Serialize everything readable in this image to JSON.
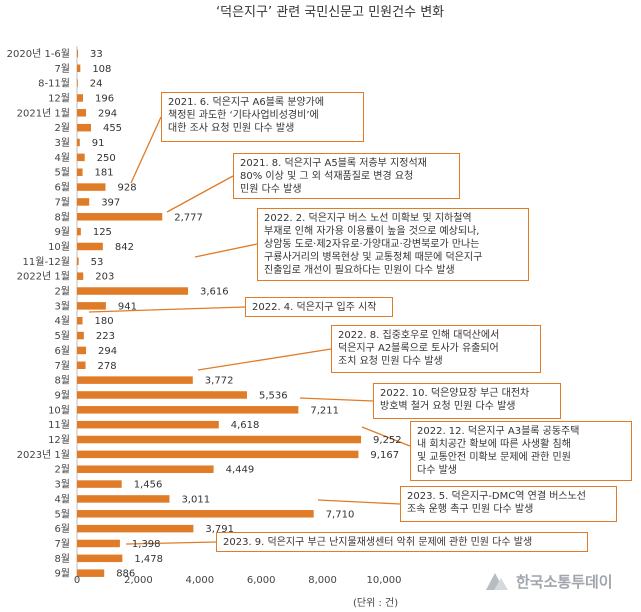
{
  "chart_data": {
    "type": "bar",
    "orientation": "horizontal",
    "title": "‘덕은지구’ 관련 국민신문고 민원건수 변화",
    "unit_label": "(단위 : 건)",
    "categories": [
      "2020년 1-6월",
      "7월",
      "8-11월",
      "12월",
      "2021년 1월",
      "2월",
      "3월",
      "4월",
      "5월",
      "6월",
      "7월",
      "8월",
      "9월",
      "10월",
      "11월-12월",
      "2022년 1월",
      "2월",
      "3월",
      "4월",
      "5월",
      "6월",
      "7월",
      "8월",
      "9월",
      "10월",
      "11월",
      "12월",
      "2023년 1월",
      "2월",
      "3월",
      "4월",
      "5월",
      "6월",
      "7월",
      "8월",
      "9월"
    ],
    "values": [
      33,
      108,
      24,
      196,
      294,
      455,
      91,
      250,
      181,
      928,
      397,
      2777,
      125,
      842,
      53,
      203,
      3616,
      941,
      180,
      223,
      294,
      278,
      3772,
      5536,
      7211,
      4618,
      9252,
      9167,
      4449,
      1456,
      3011,
      7710,
      3791,
      1398,
      1478,
      886
    ],
    "value_labels": [
      "33",
      "108",
      "24",
      "196",
      "294",
      "455",
      "91",
      "250",
      "181",
      "928",
      "397",
      "2,777",
      "125",
      "842",
      "53",
      "203",
      "3,616",
      "941",
      "180",
      "223",
      "294",
      "278",
      "3,772",
      "5,536",
      "7,211",
      "4,618",
      "9,252",
      "9,167",
      "4,449",
      "1,456",
      "3,011",
      "7,710",
      "3,791",
      "1,398",
      "1,478",
      "886"
    ],
    "xlim": [
      0,
      10000
    ],
    "xticks": [
      "0",
      "2,000",
      "4,000",
      "6,000",
      "8,000",
      "10,000"
    ],
    "bar_color": "#e07b27",
    "grid": false,
    "annotations": [
      {
        "target": "6월 (2021)",
        "text": "2021. 6. 덕은지구 A6블록 분양가에\n책정된 과도한 ‘기타사업비성경비’에\n대한 조사 요청 민원 다수 발생"
      },
      {
        "target": "8월 (2021)",
        "text": "2021. 8. 덕은지구 A5블록 저층부 지정석재\n80% 이상 및 그 외 석재품질로 변경 요청\n민원 다수 발생"
      },
      {
        "target": "2월 (2022)",
        "text": "2022. 2. 덕은지구 버스 노선 미확보 및 지하철역\n부재로 인해 자가용 이용률이 높을 것으로 예상되나,\n상암동 도로·제2자유로·가양대교·강변북로가 만나는\n구룡사거리의 병목현상 및 교통정체 때문에 덕은지구\n진출입로 개선이 필요하다는 민원이 다수 발생"
      },
      {
        "target": "4월 (2022)",
        "text": "2022. 4. 덕은지구 입주 시작"
      },
      {
        "target": "8월 (2022)",
        "text": "2022. 8. 집중호우로 인해 대덕산에서\n덕은지구 A2블록으로 토사가 유출되어\n조치 요청 민원 다수 발생"
      },
      {
        "target": "10월 (2022)",
        "text": "2022. 10. 덕은양묘장 부근 대전차\n방호벽 철거 요청 민원 다수 발생"
      },
      {
        "target": "12월 (2022)",
        "text": "2022. 12. 덕은지구 A3블록 공동주택\n내 회치공간 확보에 따른 사생활 침해\n및 교통안전 미확보 문제에 관한 민원\n다수 발생"
      },
      {
        "target": "5월 (2023)",
        "text": "2023. 5. 덕은지구-DMC역 연결 버스노선\n조속 운행 촉구 민원 다수 발생"
      },
      {
        "target": "9월 (2023)",
        "text": "2023. 9. 덕은지구 부근 난지물재생센터 악취 문제에 관한 민원 다수 발생"
      }
    ]
  },
  "logo": {
    "text": "한국소통투데이",
    "icon": "logo-mark-icon"
  }
}
